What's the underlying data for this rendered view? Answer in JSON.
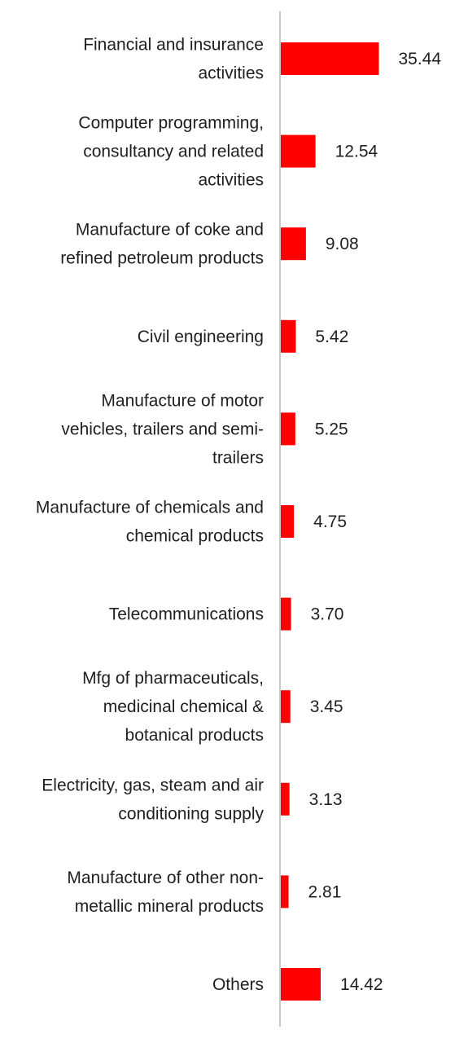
{
  "chart_data": {
    "type": "bar",
    "orientation": "horizontal",
    "categories": [
      [
        "Financial and insurance",
        "activities"
      ],
      [
        "Computer programming,",
        "consultancy and related",
        "activities"
      ],
      [
        "Manufacture of coke and",
        "refined petroleum products"
      ],
      [
        "Civil engineering"
      ],
      [
        "Manufacture of motor",
        "vehicles, trailers and semi-",
        "trailers"
      ],
      [
        "Manufacture of chemicals and",
        "chemical products"
      ],
      [
        "Telecommunications"
      ],
      [
        "Mfg of pharmaceuticals,",
        "medicinal chemical &",
        "botanical products"
      ],
      [
        "Electricity, gas, steam and air",
        "conditioning supply"
      ],
      [
        "Manufacture of other non-",
        "metallic mineral products"
      ],
      [
        "Others"
      ]
    ],
    "values": [
      35.44,
      12.54,
      9.08,
      5.42,
      5.25,
      4.75,
      3.7,
      3.45,
      3.13,
      2.81,
      14.42
    ],
    "value_labels": [
      "35.44",
      "12.54",
      "9.08",
      "5.42",
      "5.25",
      "4.75",
      "3.70",
      "3.45",
      "3.13",
      "2.81",
      "14.42"
    ],
    "bar_color": "#ff0000",
    "axis_color": "#c8c8c8",
    "grid": false,
    "legend": "none"
  }
}
